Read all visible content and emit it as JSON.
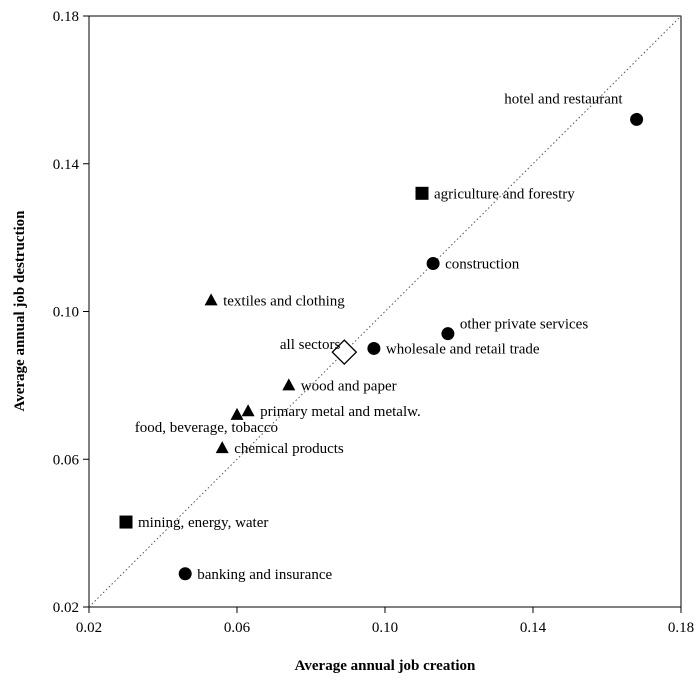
{
  "chart_data": {
    "type": "scatter",
    "title": "",
    "xlabel": "Average annual job creation",
    "ylabel": "Average annual job destruction",
    "xlim": [
      0.02,
      0.18
    ],
    "ylim": [
      0.02,
      0.18
    ],
    "x_ticks": [
      {
        "value": 0.02,
        "label": "0.02"
      },
      {
        "value": 0.06,
        "label": "0.06"
      },
      {
        "value": 0.1,
        "label": "0.10"
      },
      {
        "value": 0.14,
        "label": "0.14"
      },
      {
        "value": 0.18,
        "label": "0.18"
      }
    ],
    "y_ticks": [
      {
        "value": 0.02,
        "label": "0.02"
      },
      {
        "value": 0.06,
        "label": "0.06"
      },
      {
        "value": 0.1,
        "label": "0.10"
      },
      {
        "value": 0.14,
        "label": "0.14"
      },
      {
        "value": 0.18,
        "label": "0.18"
      }
    ],
    "grid": false,
    "reference_line": {
      "style": "dotted",
      "from": [
        0.02,
        0.02
      ],
      "to": [
        0.18,
        0.18
      ]
    },
    "colors": {
      "marker": "#000000",
      "axis": "#000000",
      "diagonal": "#555555"
    },
    "points": [
      {
        "label": "hotel and restaurant",
        "x": 0.168,
        "y": 0.152,
        "marker": "circle",
        "label_pos": "above-left"
      },
      {
        "label": "agriculture and forestry",
        "x": 0.11,
        "y": 0.132,
        "marker": "square",
        "label_pos": "right"
      },
      {
        "label": "construction",
        "x": 0.113,
        "y": 0.113,
        "marker": "circle",
        "label_pos": "right"
      },
      {
        "label": "textiles and clothing",
        "x": 0.053,
        "y": 0.103,
        "marker": "triangle",
        "label_pos": "right"
      },
      {
        "label": "other private services",
        "x": 0.117,
        "y": 0.094,
        "marker": "circle",
        "label_pos": "above-right"
      },
      {
        "label": "all sectors",
        "x": 0.089,
        "y": 0.089,
        "marker": "diamond",
        "label_pos": "left"
      },
      {
        "label": "wholesale and retail trade",
        "x": 0.097,
        "y": 0.09,
        "marker": "circle",
        "label_pos": "right"
      },
      {
        "label": "wood and paper",
        "x": 0.074,
        "y": 0.08,
        "marker": "triangle",
        "label_pos": "right"
      },
      {
        "label": "primary metal and metalw.",
        "x": 0.063,
        "y": 0.073,
        "marker": "triangle",
        "label_pos": "right"
      },
      {
        "label": "food, beverage, tobacco",
        "x": 0.06,
        "y": 0.072,
        "marker": "triangle",
        "label_pos": "below-left"
      },
      {
        "label": "chemical products",
        "x": 0.056,
        "y": 0.063,
        "marker": "triangle",
        "label_pos": "right"
      },
      {
        "label": "mining, energy, water",
        "x": 0.03,
        "y": 0.043,
        "marker": "square",
        "label_pos": "right"
      },
      {
        "label": "banking and insurance",
        "x": 0.046,
        "y": 0.029,
        "marker": "circle",
        "label_pos": "right"
      }
    ]
  }
}
